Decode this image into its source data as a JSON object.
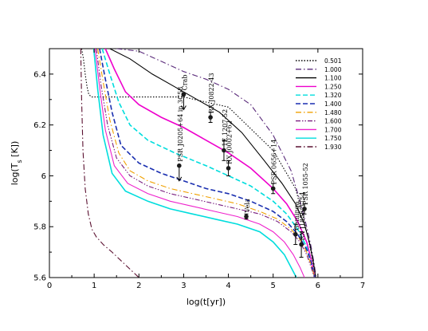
{
  "chart_data": {
    "type": "line",
    "xlabel": "log(t[yr])",
    "ylabel": "log(T_s [K])",
    "xlim": [
      0,
      7
    ],
    "ylim": [
      5.6,
      6.5
    ],
    "xticks": [
      0,
      1,
      2,
      3,
      4,
      5,
      6,
      7
    ],
    "yticks": [
      5.6,
      5.8,
      6.0,
      6.2,
      6.4
    ],
    "ytick_labels": [
      "5.6",
      "5.8",
      "6",
      "6.2",
      "6.4"
    ],
    "legend_position": "top-right",
    "series": [
      {
        "name": "0.501",
        "color": "#000000",
        "dash": "dotted",
        "x": [
          0.72,
          0.76,
          0.8,
          0.84,
          0.88,
          0.94,
          1.0,
          1.3,
          2.0,
          3.0,
          4.0,
          5.0,
          5.5,
          5.7,
          5.85,
          5.95
        ],
        "y": [
          6.5,
          6.46,
          6.4,
          6.35,
          6.32,
          6.31,
          6.31,
          6.31,
          6.31,
          6.31,
          6.27,
          6.1,
          5.95,
          5.82,
          5.7,
          5.6
        ]
      },
      {
        "name": "1.000",
        "color": "#5a2a7a",
        "dash": "dashdot",
        "x": [
          1.5,
          2.0,
          2.5,
          3.0,
          3.5,
          4.0,
          4.5,
          5.0,
          5.4,
          5.6,
          5.75,
          5.85,
          5.92,
          5.96
        ],
        "y": [
          6.5,
          6.49,
          6.45,
          6.41,
          6.38,
          6.34,
          6.28,
          6.16,
          6.02,
          5.9,
          5.8,
          5.72,
          5.65,
          5.6
        ]
      },
      {
        "name": "1.100",
        "color": "#000000",
        "dash": "solid",
        "x": [
          1.35,
          1.8,
          2.3,
          2.8,
          3.3,
          3.8,
          4.3,
          4.8,
          5.2,
          5.5,
          5.7,
          5.82,
          5.9,
          5.95
        ],
        "y": [
          6.5,
          6.46,
          6.4,
          6.35,
          6.3,
          6.25,
          6.17,
          6.06,
          5.97,
          5.89,
          5.81,
          5.73,
          5.66,
          5.6
        ]
      },
      {
        "name": "1.250",
        "color": "#ee00cc",
        "dash": "solid",
        "x": [
          1.25,
          1.45,
          1.7,
          2.0,
          2.5,
          3.0,
          3.5,
          4.0,
          4.5,
          5.0,
          5.3,
          5.55,
          5.75,
          5.85,
          5.93
        ],
        "y": [
          6.5,
          6.42,
          6.33,
          6.28,
          6.23,
          6.19,
          6.14,
          6.09,
          6.03,
          5.95,
          5.89,
          5.82,
          5.74,
          5.67,
          5.6
        ]
      },
      {
        "name": "1.320",
        "color": "#00dddd",
        "dash": "dashed",
        "x": [
          1.18,
          1.35,
          1.55,
          1.8,
          2.2,
          2.8,
          3.5,
          4.0,
          4.5,
          5.0,
          5.3,
          5.55,
          5.75,
          5.85,
          5.93
        ],
        "y": [
          6.5,
          6.4,
          6.29,
          6.2,
          6.14,
          6.09,
          6.04,
          6.0,
          5.96,
          5.9,
          5.85,
          5.79,
          5.72,
          5.66,
          5.6
        ]
      },
      {
        "name": "1.400",
        "color": "#1a2fb0",
        "dash": "dashed",
        "x": [
          1.12,
          1.25,
          1.4,
          1.6,
          2.0,
          2.5,
          3.0,
          3.5,
          4.0,
          4.5,
          5.0,
          5.3,
          5.55,
          5.75,
          5.85,
          5.93
        ],
        "y": [
          6.5,
          6.38,
          6.25,
          6.12,
          6.05,
          6.01,
          5.98,
          5.95,
          5.93,
          5.9,
          5.86,
          5.82,
          5.77,
          5.71,
          5.66,
          5.6
        ]
      },
      {
        "name": "1.480",
        "color": "#f0a000",
        "dash": "dashdot",
        "x": [
          1.08,
          1.2,
          1.35,
          1.55,
          1.8,
          2.2,
          2.7,
          3.2,
          3.7,
          4.2,
          4.7,
          5.1,
          5.4,
          5.6,
          5.75,
          5.85,
          5.93
        ],
        "y": [
          6.5,
          6.37,
          6.22,
          6.09,
          6.02,
          5.98,
          5.95,
          5.93,
          5.91,
          5.89,
          5.86,
          5.83,
          5.79,
          5.75,
          5.7,
          5.65,
          5.6
        ]
      },
      {
        "name": "1.600",
        "color": "#7a2080",
        "dash": "dashdotdot",
        "x": [
          1.05,
          1.15,
          1.3,
          1.5,
          1.8,
          2.2,
          2.7,
          3.2,
          3.7,
          4.2,
          4.7,
          5.1,
          5.4,
          5.6,
          5.75,
          5.85,
          5.92
        ],
        "y": [
          6.5,
          6.36,
          6.2,
          6.07,
          6.0,
          5.96,
          5.93,
          5.91,
          5.89,
          5.87,
          5.85,
          5.82,
          5.78,
          5.74,
          5.69,
          5.64,
          5.6
        ]
      },
      {
        "name": "1.700",
        "color": "#ee22cc",
        "dash": "solid",
        "x": [
          1.02,
          1.12,
          1.25,
          1.45,
          1.75,
          2.2,
          2.7,
          3.2,
          3.7,
          4.2,
          4.7,
          5.0,
          5.25,
          5.45,
          5.6,
          5.7
        ],
        "y": [
          6.5,
          6.35,
          6.18,
          6.04,
          5.97,
          5.93,
          5.9,
          5.88,
          5.86,
          5.84,
          5.81,
          5.78,
          5.74,
          5.69,
          5.64,
          5.6
        ]
      },
      {
        "name": "1.750",
        "color": "#00dddd",
        "dash": "solid",
        "x": [
          0.99,
          1.08,
          1.2,
          1.4,
          1.7,
          2.2,
          2.7,
          3.2,
          3.7,
          4.2,
          4.7,
          5.0,
          5.25,
          5.4,
          5.52
        ],
        "y": [
          6.5,
          6.34,
          6.16,
          6.01,
          5.94,
          5.9,
          5.87,
          5.85,
          5.83,
          5.81,
          5.78,
          5.74,
          5.69,
          5.64,
          5.6
        ]
      },
      {
        "name": "1.930",
        "color": "#5a1030",
        "dash": "dashdot",
        "x": [
          0.7,
          0.72,
          0.75,
          0.8,
          0.87,
          0.95,
          1.05,
          1.2,
          1.4,
          1.7,
          2.0
        ],
        "y": [
          6.5,
          6.3,
          6.1,
          5.95,
          5.85,
          5.79,
          5.76,
          5.73,
          5.7,
          5.65,
          5.6
        ]
      }
    ],
    "observations": [
      {
        "label": "Crab",
        "x": 3.0,
        "y": 6.32,
        "yerr": [
          0,
          0
        ],
        "upper_limit": true,
        "arrow_to": 6.26
      },
      {
        "label": "RX J0822-43",
        "x": 3.6,
        "y": 6.23,
        "yerr": [
          0.02,
          0.02
        ],
        "upper_limit": false
      },
      {
        "label": "PSR J0205+64 in 3C58",
        "x": 2.9,
        "y": 6.04,
        "yerr": [
          0.0,
          0.0
        ],
        "upper_limit": true,
        "arrow_to": 5.98
      },
      {
        "label": "1E 1207-52",
        "x": 3.9,
        "y": 6.1,
        "yerr": [
          0.04,
          0.04
        ],
        "upper_limit": false
      },
      {
        "label": "RX J0002+62",
        "x": 4.0,
        "y": 6.03,
        "yerr": [
          0.03,
          0.03
        ],
        "upper_limit": false
      },
      {
        "label": "Vela",
        "x": 4.4,
        "y": 5.84,
        "yerr": [
          0.01,
          0.01
        ],
        "upper_limit": false
      },
      {
        "label": "PSR 0656+14",
        "x": 5.0,
        "y": 5.95,
        "yerr": [
          0.02,
          0.02
        ],
        "upper_limit": false
      },
      {
        "label": "Geminga",
        "x": 5.5,
        "y": 5.77,
        "yerr": [
          0.04,
          0.04
        ],
        "upper_limit": false
      },
      {
        "label": "PSR 1055-52",
        "x": 5.7,
        "y": 5.87,
        "yerr": [
          0.02,
          0.02
        ],
        "upper_limit": false
      },
      {
        "label": "RX J1856-3754",
        "x": 5.63,
        "y": 5.73,
        "yerr": [
          0.05,
          0.05
        ],
        "upper_limit": false
      }
    ]
  }
}
